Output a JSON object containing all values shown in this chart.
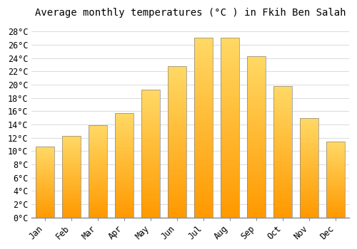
{
  "months": [
    "Jan",
    "Feb",
    "Mar",
    "Apr",
    "May",
    "Jun",
    "Jul",
    "Aug",
    "Sep",
    "Oct",
    "Nov",
    "Dec"
  ],
  "temperatures": [
    10.7,
    12.3,
    13.9,
    15.7,
    19.2,
    22.8,
    27.1,
    27.1,
    24.3,
    19.8,
    15.0,
    11.4
  ],
  "bar_color": "#FFAA00",
  "bar_edge_color": "#888888",
  "background_color": "#FFFFFF",
  "plot_bg_color": "#FFFFFF",
  "grid_color": "#DDDDDD",
  "title": "Average monthly temperatures (°C ) in Fkih Ben Salah",
  "title_fontsize": 10,
  "tick_fontsize": 8.5,
  "ylabel_ticks": [
    0,
    2,
    4,
    6,
    8,
    10,
    12,
    14,
    16,
    18,
    20,
    22,
    24,
    26,
    28
  ],
  "ylim": [
    0,
    29.5
  ],
  "font_family": "monospace",
  "bar_bottom_color": "#FF9900",
  "bar_top_color": "#FFD966"
}
